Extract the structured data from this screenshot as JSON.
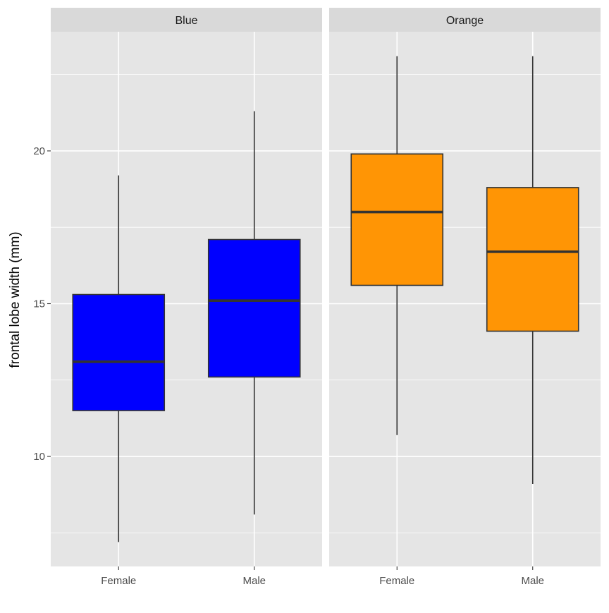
{
  "chart_data": {
    "type": "boxplot",
    "ylabel": "frontal lobe width (mm)",
    "xlabel": "",
    "ylim": [
      6.4,
      23.9
    ],
    "y_ticks": [
      10,
      15,
      20
    ],
    "y_tick_labels": [
      "10",
      "15",
      "20"
    ],
    "y_minor_breaks": [
      7.5,
      12.5,
      17.5,
      22.5
    ],
    "categories": [
      "Female",
      "Male"
    ],
    "grid": true,
    "facets": [
      {
        "name": "Blue",
        "fill": "#0000ff",
        "boxes": [
          {
            "category": "Female",
            "min": 7.2,
            "q1": 11.5,
            "median": 13.1,
            "q3": 15.3,
            "max": 19.2
          },
          {
            "category": "Male",
            "min": 8.1,
            "q1": 12.6,
            "median": 15.1,
            "q3": 17.1,
            "max": 21.3
          }
        ]
      },
      {
        "name": "Orange",
        "fill": "#ff9505",
        "boxes": [
          {
            "category": "Female",
            "min": 10.7,
            "q1": 15.6,
            "median": 18.0,
            "q3": 19.9,
            "max": 23.1
          },
          {
            "category": "Male",
            "min": 9.1,
            "q1": 14.1,
            "median": 16.7,
            "q3": 18.8,
            "max": 23.1
          }
        ]
      }
    ]
  }
}
